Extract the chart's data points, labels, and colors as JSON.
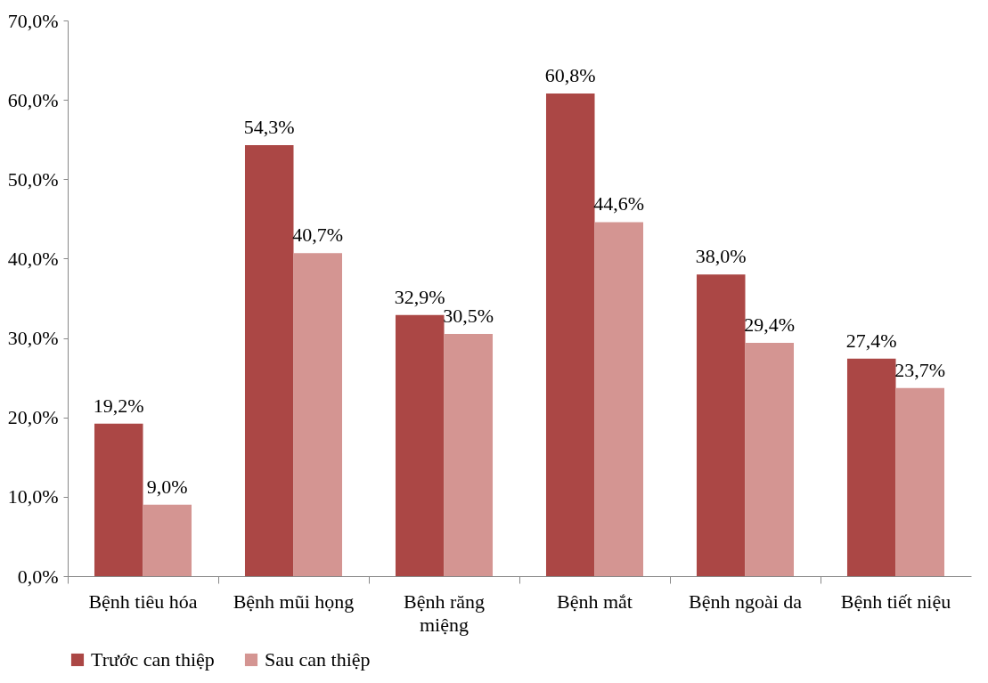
{
  "chart_data": {
    "type": "bar",
    "categories": [
      "Bệnh tiêu hóa",
      "Bệnh mũi họng",
      "Bệnh răng miệng",
      "Bệnh mắt",
      "Bệnh ngoài da",
      "Bệnh tiết niệu"
    ],
    "series": [
      {
        "name": "Trước can thiệp",
        "color": "#ab4745",
        "values": [
          19.2,
          54.3,
          32.9,
          60.8,
          38.0,
          27.4
        ],
        "value_labels": [
          "19,2%",
          "54,3%",
          "32,9%",
          "60,8%",
          "38,0%",
          "27,4%"
        ]
      },
      {
        "name": "Sau can thiệp",
        "color": "#d49592",
        "values": [
          9.0,
          40.7,
          30.5,
          44.6,
          29.4,
          23.7
        ],
        "value_labels": [
          "9,0%",
          "40,7%",
          "30,5%",
          "44,6%",
          "29,4%",
          "23,7%"
        ]
      }
    ],
    "ylim": [
      0,
      70
    ],
    "yticks": [
      {
        "value": 0,
        "label": "0,0%"
      },
      {
        "value": 10,
        "label": "10,0%"
      },
      {
        "value": 20,
        "label": "20,0%"
      },
      {
        "value": 30,
        "label": "30,0%"
      },
      {
        "value": 40,
        "label": "40,0%"
      },
      {
        "value": 50,
        "label": "50,0%"
      },
      {
        "value": 60,
        "label": "60,0%"
      },
      {
        "value": 70,
        "label": "70,0%"
      }
    ],
    "grid": false,
    "legend": "bottom"
  }
}
